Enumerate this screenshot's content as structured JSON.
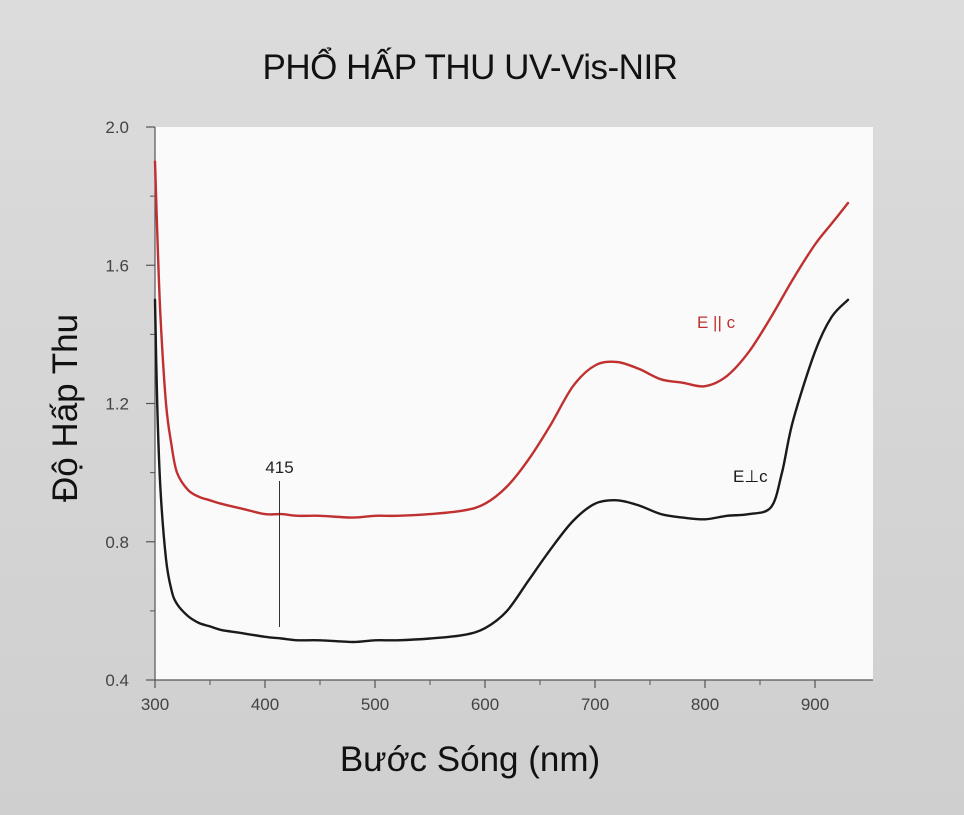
{
  "chart_data": {
    "type": "line",
    "title": "PHỔ HẤP THU UV-Vis-NIR",
    "xlabel": "Bước Sóng (nm)",
    "ylabel": "Độ Hấp Thu",
    "xlim": [
      300,
      930
    ],
    "ylim": [
      0.4,
      2.0
    ],
    "xticks": [
      "300",
      "400",
      "500",
      "600",
      "700",
      "800",
      "900"
    ],
    "yticks": [
      "0.4",
      "0.8",
      "1.2",
      "1.6",
      "2.0"
    ],
    "grid": false,
    "legend": "none",
    "series": [
      {
        "name": "E || c",
        "color": "#c03030",
        "x": [
          300,
          302,
          305,
          310,
          315,
          320,
          330,
          340,
          350,
          360,
          380,
          400,
          415,
          430,
          450,
          480,
          500,
          520,
          550,
          580,
          600,
          620,
          640,
          660,
          680,
          700,
          720,
          740,
          760,
          780,
          800,
          820,
          840,
          860,
          880,
          900,
          915,
          930
        ],
        "y": [
          1.9,
          1.7,
          1.45,
          1.2,
          1.08,
          1.0,
          0.95,
          0.93,
          0.92,
          0.91,
          0.895,
          0.88,
          0.88,
          0.875,
          0.875,
          0.87,
          0.875,
          0.875,
          0.88,
          0.89,
          0.91,
          0.96,
          1.04,
          1.14,
          1.25,
          1.31,
          1.32,
          1.3,
          1.27,
          1.26,
          1.25,
          1.28,
          1.35,
          1.45,
          1.56,
          1.66,
          1.72,
          1.78
        ]
      },
      {
        "name": "E⊥c",
        "color": "#1a1a1a",
        "x": [
          300,
          302,
          305,
          310,
          315,
          320,
          330,
          340,
          350,
          360,
          380,
          400,
          415,
          430,
          450,
          480,
          500,
          520,
          550,
          580,
          600,
          620,
          640,
          660,
          680,
          700,
          720,
          740,
          760,
          780,
          800,
          820,
          840,
          860,
          870,
          880,
          900,
          915,
          930
        ],
        "y": [
          1.5,
          1.2,
          0.95,
          0.75,
          0.66,
          0.62,
          0.585,
          0.565,
          0.555,
          0.545,
          0.535,
          0.525,
          0.52,
          0.515,
          0.515,
          0.51,
          0.515,
          0.515,
          0.52,
          0.53,
          0.55,
          0.6,
          0.69,
          0.78,
          0.86,
          0.91,
          0.92,
          0.905,
          0.88,
          0.87,
          0.865,
          0.875,
          0.88,
          0.9,
          1.0,
          1.15,
          1.35,
          1.45,
          1.5
        ]
      }
    ],
    "annotations": [
      {
        "text": "415",
        "x": 415
      }
    ]
  }
}
